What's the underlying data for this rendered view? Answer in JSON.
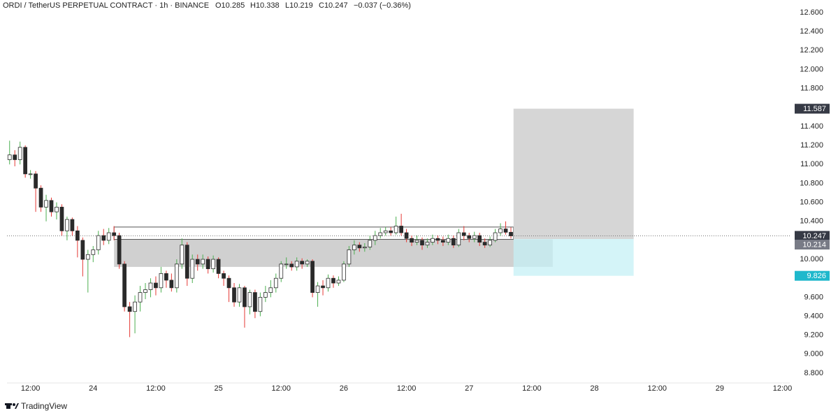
{
  "chart_data": {
    "type": "candlestick",
    "title": "ORDI / TetherUS PERPETUAL CONTRACT · 1h · BINANCE",
    "ohlc_text": [
      "O10.285",
      "H10.338",
      "L10.219",
      "C10.247",
      "−0.037 (−0.36%)"
    ],
    "brand": "TradingView",
    "x": [
      8,
      9,
      10,
      11,
      12,
      13,
      14,
      15,
      16,
      17,
      18,
      19,
      20,
      21,
      22,
      23,
      24,
      25,
      26,
      27,
      28,
      29,
      30,
      31,
      32,
      33,
      34,
      35,
      36,
      37,
      38,
      39,
      40,
      41,
      42,
      43,
      44,
      45,
      46,
      47,
      48,
      49,
      50,
      51,
      52,
      53,
      54,
      55,
      56,
      57,
      58,
      59,
      60,
      61,
      62,
      63,
      64,
      65,
      66,
      67,
      68,
      69,
      70,
      71,
      72,
      73,
      74,
      75,
      76,
      77,
      78,
      79,
      80,
      81,
      82,
      83,
      84,
      85,
      86,
      87,
      88,
      89,
      90,
      91,
      92,
      93,
      94,
      95,
      96,
      97,
      98,
      99,
      100,
      101,
      102,
      103,
      104
    ],
    "open": [
      11.05,
      11.1,
      11.05,
      11.18,
      10.9,
      10.9,
      10.75,
      10.55,
      10.62,
      10.5,
      10.55,
      10.3,
      10.42,
      10.3,
      10.2,
      10.0,
      10.05,
      10.1,
      10.25,
      10.2,
      10.28,
      10.25,
      9.95,
      9.5,
      9.45,
      9.55,
      9.65,
      9.68,
      9.75,
      9.7,
      9.85,
      9.78,
      9.7,
      9.95,
      10.15,
      9.8,
      10.0,
      9.95,
      10.0,
      9.9,
      10.0,
      9.85,
      9.8,
      9.7,
      9.55,
      9.7,
      9.5,
      9.65,
      9.45,
      9.6,
      9.65,
      9.7,
      9.8,
      9.95,
      9.95,
      9.92,
      9.98,
      9.95,
      9.98,
      9.65,
      9.72,
      9.7,
      9.8,
      9.75,
      9.78,
      9.95,
      10.1,
      10.15,
      10.12,
      10.13,
      10.2,
      10.25,
      10.28,
      10.3,
      10.28,
      10.35,
      10.28,
      10.22,
      10.18,
      10.2,
      10.15,
      10.18,
      10.22,
      10.2,
      10.18,
      10.22,
      10.15,
      10.28,
      10.25,
      10.22,
      10.25,
      10.18,
      10.15,
      10.2,
      10.28,
      10.32,
      10.285
    ],
    "high": [
      11.25,
      11.15,
      11.24,
      11.2,
      10.94,
      10.93,
      10.78,
      10.68,
      10.65,
      10.6,
      10.58,
      10.45,
      10.44,
      10.35,
      10.23,
      10.1,
      10.14,
      10.3,
      10.32,
      10.33,
      10.35,
      10.28,
      9.98,
      9.55,
      9.62,
      9.72,
      9.75,
      9.8,
      9.82,
      9.92,
      9.88,
      9.85,
      10.0,
      10.22,
      10.18,
      10.05,
      10.05,
      10.05,
      10.03,
      10.04,
      10.02,
      9.88,
      9.83,
      9.75,
      9.74,
      9.72,
      9.68,
      9.68,
      9.65,
      9.72,
      9.78,
      9.85,
      9.98,
      10.02,
      9.98,
      10.02,
      10.01,
      10.0,
      10.0,
      9.76,
      9.78,
      9.84,
      9.83,
      9.82,
      9.98,
      10.14,
      10.2,
      10.18,
      10.17,
      10.25,
      10.3,
      10.33,
      10.34,
      10.34,
      10.45,
      10.48,
      10.32,
      10.25,
      10.25,
      10.23,
      10.22,
      10.26,
      10.25,
      10.24,
      10.26,
      10.25,
      10.32,
      10.35,
      10.28,
      10.29,
      10.28,
      10.22,
      10.24,
      10.32,
      10.38,
      10.4,
      10.338
    ],
    "low": [
      11.0,
      10.98,
      11.0,
      10.86,
      10.85,
      10.5,
      10.5,
      10.4,
      10.45,
      10.42,
      10.25,
      10.2,
      10.25,
      10.02,
      9.82,
      9.65,
      9.97,
      10.05,
      10.15,
      10.16,
      10.2,
      9.9,
      9.45,
      9.18,
      9.22,
      9.45,
      9.58,
      9.6,
      9.62,
      9.65,
      9.7,
      9.66,
      9.65,
      9.9,
      9.72,
      9.75,
      9.88,
      9.9,
      9.85,
      9.86,
      9.8,
      9.72,
      9.55,
      9.5,
      9.5,
      9.28,
      9.42,
      9.38,
      9.4,
      9.55,
      9.6,
      9.65,
      9.76,
      9.9,
      9.88,
      9.88,
      9.9,
      9.92,
      9.6,
      9.5,
      9.62,
      9.66,
      9.7,
      9.72,
      9.76,
      9.92,
      10.05,
      10.08,
      10.08,
      10.1,
      10.15,
      10.22,
      10.25,
      10.25,
      10.26,
      10.25,
      10.18,
      10.14,
      10.15,
      10.1,
      10.12,
      10.15,
      10.16,
      10.14,
      10.15,
      10.12,
      10.13,
      10.2,
      10.18,
      10.18,
      10.14,
      10.12,
      10.13,
      10.18,
      10.25,
      10.26,
      10.219
    ],
    "close": [
      11.1,
      11.05,
      11.18,
      10.9,
      10.9,
      10.75,
      10.55,
      10.62,
      10.5,
      10.55,
      10.3,
      10.42,
      10.3,
      10.2,
      10.0,
      10.05,
      10.1,
      10.25,
      10.2,
      10.28,
      10.25,
      9.95,
      9.5,
      9.45,
      9.55,
      9.65,
      9.68,
      9.75,
      9.7,
      9.85,
      9.78,
      9.7,
      9.95,
      10.15,
      9.8,
      10.0,
      9.95,
      10.0,
      9.9,
      10.0,
      9.85,
      9.8,
      9.7,
      9.55,
      9.7,
      9.5,
      9.65,
      9.45,
      9.6,
      9.65,
      9.7,
      9.8,
      9.95,
      9.95,
      9.92,
      9.98,
      9.95,
      9.98,
      9.65,
      9.72,
      9.7,
      9.8,
      9.75,
      9.78,
      9.95,
      10.1,
      10.15,
      10.12,
      10.13,
      10.2,
      10.25,
      10.28,
      10.3,
      10.28,
      10.35,
      10.28,
      10.22,
      10.18,
      10.2,
      10.15,
      10.18,
      10.22,
      10.2,
      10.18,
      10.22,
      10.15,
      10.28,
      10.25,
      10.22,
      10.25,
      10.18,
      10.15,
      10.2,
      10.28,
      10.32,
      10.285,
      10.247
    ],
    "up_color": "#ffffff",
    "down_color": "#2a2a2a",
    "body_stroke": "#2a2a2a",
    "up_wick": "#4caf50",
    "down_wick": "#e53935",
    "xlim": [
      7.5,
      157.4
    ],
    "xticks": [
      {
        "value": 12,
        "label": "12:00"
      },
      {
        "value": 24,
        "label": "24"
      },
      {
        "value": 36,
        "label": "12:00"
      },
      {
        "value": 48,
        "label": "25"
      },
      {
        "value": 60,
        "label": "12:00"
      },
      {
        "value": 72,
        "label": "26"
      },
      {
        "value": 84,
        "label": "12:00"
      },
      {
        "value": 96,
        "label": "27"
      },
      {
        "value": 108,
        "label": "12:00"
      },
      {
        "value": 120,
        "label": "28"
      },
      {
        "value": 132,
        "label": "12:00"
      },
      {
        "value": 144,
        "label": "29"
      },
      {
        "value": 156,
        "label": "12:00"
      }
    ],
    "ylim": [
      8.67,
      12.73
    ],
    "yticks": [
      {
        "value": 8.8,
        "label": "8.800"
      },
      {
        "value": 9.0,
        "label": "9.000"
      },
      {
        "value": 9.2,
        "label": "9.200"
      },
      {
        "value": 9.4,
        "label": "9.400"
      },
      {
        "value": 9.6,
        "label": "9.600"
      },
      {
        "value": 9.8,
        "label": "9.800"
      },
      {
        "value": 10.0,
        "label": "10.000"
      },
      {
        "value": 10.2,
        "label": "10.200"
      },
      {
        "value": 10.4,
        "label": "10.400"
      },
      {
        "value": 10.6,
        "label": "10.600"
      },
      {
        "value": 10.8,
        "label": "10.800"
      },
      {
        "value": 11.0,
        "label": "11.000"
      },
      {
        "value": 11.2,
        "label": "11.200"
      },
      {
        "value": 11.4,
        "label": "11.400"
      },
      {
        "value": 11.6,
        "label": "11.600"
      },
      {
        "value": 11.8,
        "label": "11.800"
      },
      {
        "value": 12.0,
        "label": "12.000"
      },
      {
        "value": 12.2,
        "label": "12.200"
      },
      {
        "value": 12.4,
        "label": "12.400"
      },
      {
        "value": 12.6,
        "label": "12.600"
      }
    ],
    "grid": false,
    "zone": {
      "x": [
        28,
        112
      ],
      "y": [
        9.92,
        10.21
      ],
      "color": "#c8c8c8"
    },
    "range_box": {
      "x": [
        28,
        104.5
      ],
      "y": [
        10.21,
        10.34
      ],
      "color": "#555555"
    },
    "position": {
      "x": [
        104.5,
        127.5
      ],
      "entry": 10.214,
      "target": 11.587,
      "stop": 9.826,
      "target_color": "#d6d6d6",
      "stop_color": "#c6f0f5",
      "target_label_color": "#363a45",
      "entry_label_color": "#787b86",
      "stop_label_color": "#1fb8cc"
    },
    "last_label_color": "#363a45"
  }
}
